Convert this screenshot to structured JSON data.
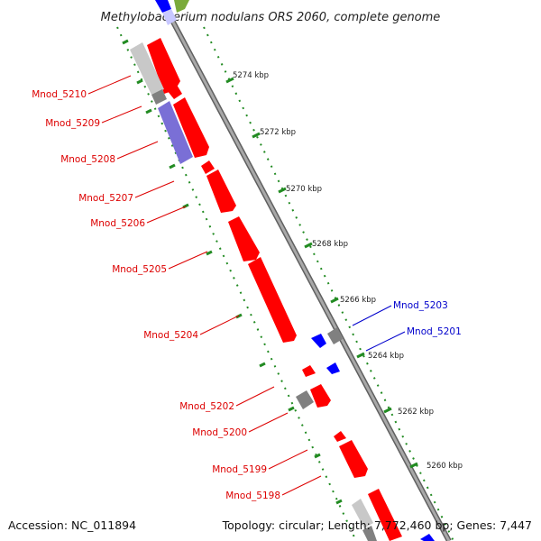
{
  "title": "Methylobacterium nodulans ORS 2060, complete genome",
  "accession_text": "Accession: NC_011894",
  "topology_text": "Topology: circular; Length: 7,772,460 bp; Genes: 7,447",
  "colors": {
    "backbone": "#909090",
    "forward_gene": "#ff0000",
    "reverse_gene": "#0000ff",
    "pseudo_gene": "#808080",
    "rna_gene": "#7a6fd6",
    "light_gene": "#c8c8c8",
    "tick": "#228B22",
    "label_red": "#dd0000",
    "label_blue": "#0000cc"
  },
  "ticks": [
    {
      "label": "5274 kbp"
    },
    {
      "label": "5272 kbp"
    },
    {
      "label": "5270 kbp"
    },
    {
      "label": "5268 kbp"
    },
    {
      "label": "5266 kbp"
    },
    {
      "label": "5264 kbp"
    },
    {
      "label": "5262 kbp"
    },
    {
      "label": "5260 kbp"
    }
  ],
  "gene_labels": [
    {
      "name": "Mnod_5210",
      "strand": "forward"
    },
    {
      "name": "Mnod_5209",
      "strand": "forward"
    },
    {
      "name": "Mnod_5208",
      "strand": "forward"
    },
    {
      "name": "Mnod_5207",
      "strand": "forward"
    },
    {
      "name": "Mnod_5206",
      "strand": "forward"
    },
    {
      "name": "Mnod_5205",
      "strand": "forward"
    },
    {
      "name": "Mnod_5204",
      "strand": "forward"
    },
    {
      "name": "Mnod_5202",
      "strand": "forward"
    },
    {
      "name": "Mnod_5200",
      "strand": "forward"
    },
    {
      "name": "Mnod_5199",
      "strand": "forward"
    },
    {
      "name": "Mnod_5198",
      "strand": "forward"
    },
    {
      "name": "Mnod_5203",
      "strand": "reverse"
    },
    {
      "name": "Mnod_5201",
      "strand": "reverse"
    }
  ]
}
